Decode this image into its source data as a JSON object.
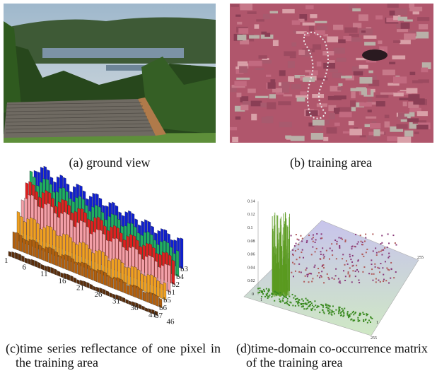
{
  "panels": [
    {
      "caption": "(a) ground view"
    },
    {
      "caption": "(b) training area"
    },
    {
      "caption": "(c)time series reflectance of one pixel in the training area",
      "x_ticks": [
        "1",
        "6",
        "11",
        "16",
        "21",
        "26",
        "31",
        "36",
        "41",
        "46"
      ],
      "band_labels": [
        "b7",
        "b6",
        "b5",
        "b1",
        "b2",
        "b4",
        "b3"
      ]
    },
    {
      "caption": "(d)time-domain co-occurrence matrix of the training area",
      "z_ticks": [
        "0",
        "0.02",
        "0.04",
        "0.06",
        "0.08",
        "0.1",
        "0.12",
        "0.14"
      ],
      "axis_labels": [
        "1",
        "255",
        "1",
        "255"
      ]
    }
  ]
}
